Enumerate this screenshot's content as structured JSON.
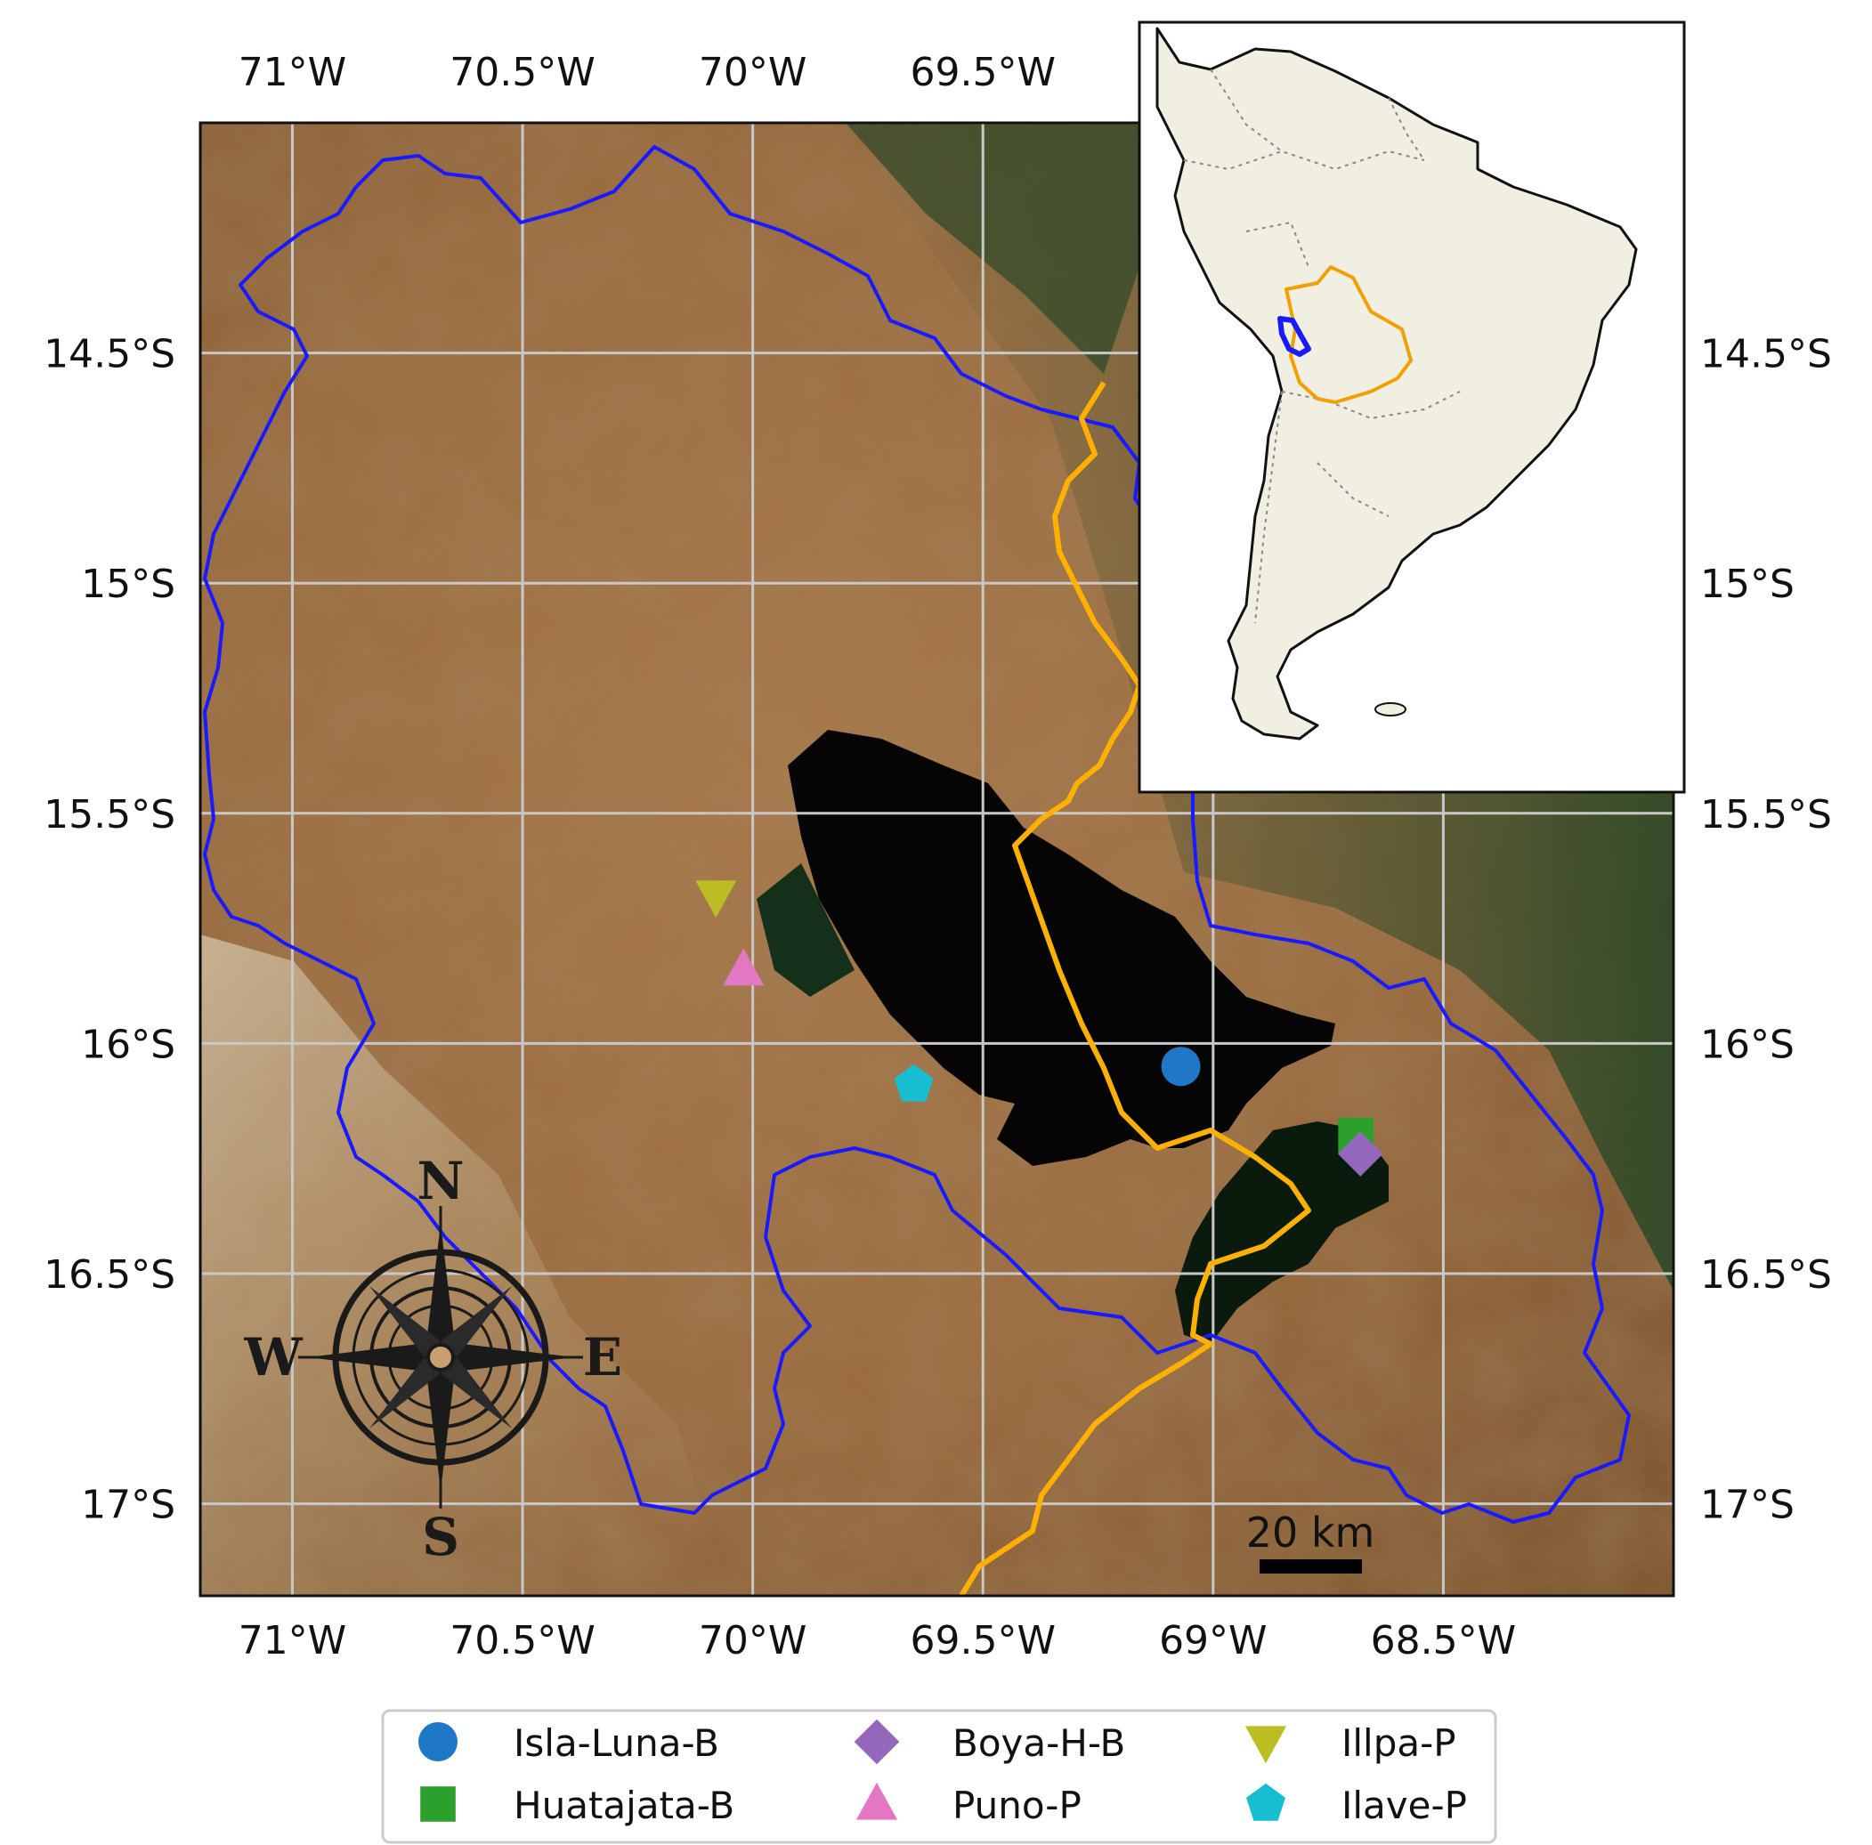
{
  "map": {
    "lon_range": [
      -71.2,
      -68.0
    ],
    "lat_range": [
      -17.2,
      -14.0
    ],
    "lon_ticks": [
      {
        "value": -71.0,
        "label": "71°W"
      },
      {
        "value": -70.5,
        "label": "70.5°W"
      },
      {
        "value": -70.0,
        "label": "70°W"
      },
      {
        "value": -69.5,
        "label": "69.5°W"
      },
      {
        "value": -69.0,
        "label": "69°W"
      },
      {
        "value": -68.5,
        "label": "68.5°W"
      }
    ],
    "lat_ticks": [
      {
        "value": -14.5,
        "label": "14.5°S"
      },
      {
        "value": -15.0,
        "label": "15°S"
      },
      {
        "value": -15.5,
        "label": "15.5°S"
      },
      {
        "value": -16.0,
        "label": "16°S"
      },
      {
        "value": -16.5,
        "label": "16.5°S"
      },
      {
        "value": -17.0,
        "label": "17°S"
      }
    ],
    "top_tick_labels": [
      "71°W",
      "70.5°W",
      "70°W",
      "69.5°W"
    ],
    "grid": true,
    "basemap": "satellite",
    "colors": {
      "watershed": "#1a1aff",
      "border": "#ffb000",
      "grid": "#c8c8c8",
      "lake": "#050505"
    }
  },
  "stations": [
    {
      "name": "Isla-Luna-B",
      "lon": -69.07,
      "lat": -16.05,
      "marker": "circle",
      "color": "#1f77c8"
    },
    {
      "name": "Huatajata-B",
      "lon": -68.69,
      "lat": -16.2,
      "marker": "square",
      "color": "#2ca02c"
    },
    {
      "name": "Boya-H-B",
      "lon": -68.68,
      "lat": -16.24,
      "marker": "diamond",
      "color": "#9467bd"
    },
    {
      "name": "Puno-P",
      "lon": -70.02,
      "lat": -15.84,
      "marker": "triangle-up",
      "color": "#e377c2"
    },
    {
      "name": "Illpa-P",
      "lon": -70.08,
      "lat": -15.68,
      "marker": "triangle-down",
      "color": "#bcbd22"
    },
    {
      "name": "Ilave-P",
      "lon": -69.65,
      "lat": -16.09,
      "marker": "pentagon",
      "color": "#17becf"
    }
  ],
  "legend": {
    "placement": "bottom-center",
    "items": [
      {
        "label": "Isla-Luna-B",
        "marker": "circle",
        "color": "#1f77c8"
      },
      {
        "label": "Boya-H-B",
        "marker": "diamond",
        "color": "#9467bd"
      },
      {
        "label": "Illpa-P",
        "marker": "triangle-down",
        "color": "#bcbd22"
      },
      {
        "label": "Huatajata-B",
        "marker": "square",
        "color": "#2ca02c"
      },
      {
        "label": "Puno-P",
        "marker": "triangle-up",
        "color": "#e377c2"
      },
      {
        "label": "Ilave-P",
        "marker": "pentagon",
        "color": "#17becf"
      }
    ]
  },
  "compass": {
    "north": "N",
    "south": "S",
    "east": "E",
    "west": "W"
  },
  "scale_bar": {
    "label": "20 km"
  },
  "inset": {
    "description_colors": {
      "land": "#f0efe1",
      "bolivia": "#f0a000",
      "basin": "#1a1aff"
    }
  }
}
